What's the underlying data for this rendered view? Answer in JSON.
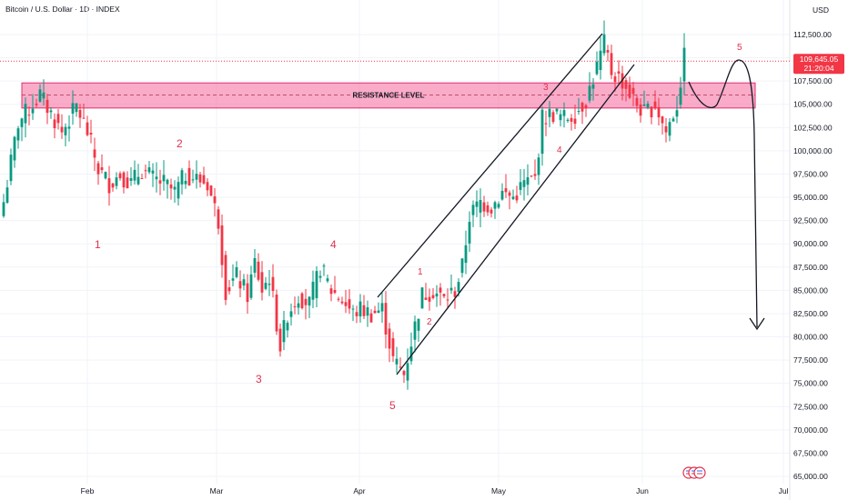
{
  "header": {
    "title": "Bitcoin / U.S. Dollar · 1D · INDEX",
    "currency": "USD"
  },
  "price_axis": {
    "ticks": [
      112500,
      110000,
      107500,
      105000,
      102500,
      100000,
      97500,
      95000,
      92500,
      90000,
      87500,
      85000,
      82500,
      80000,
      77500,
      75000,
      72500,
      70000,
      67500,
      65000
    ],
    "labels": [
      "112,500.00",
      "110,000.00",
      "107,500.00",
      "105,000.00",
      "102,500.00",
      "100,000.00",
      "97,500.00",
      "95,000.00",
      "92,500.00",
      "90,000.00",
      "87,500.00",
      "85,000.00",
      "82,500.00",
      "80,000.00",
      "77,500.00",
      "75,000.00",
      "72,500.00",
      "70,000.00",
      "67,500.00",
      "65,000.00"
    ]
  },
  "time_axis": {
    "labels": [
      "Feb",
      "Mar",
      "Apr",
      "May",
      "Jun",
      "Jul"
    ]
  },
  "last_price": {
    "value": 109645.05,
    "label": "109,645.05",
    "countdown": "21:20:04",
    "color": "#f23645"
  },
  "colors": {
    "up": "#089981",
    "down": "#f23645",
    "zone": "#f5669a",
    "wave": "#e0304e"
  },
  "resistance": {
    "label": "RESISTANCE LEVEL",
    "low": 104600,
    "high": 107300,
    "mid": 106000
  },
  "chart_data": {
    "type": "candlestick",
    "title": "Bitcoin / U.S. Dollar · 1D · INDEX",
    "ylim": [
      64500,
      114800
    ],
    "x_axis": [
      "Feb",
      "Mar",
      "Apr",
      "May",
      "Jun",
      "Jul"
    ],
    "anchor_closes": [
      [
        0,
        94500
      ],
      [
        4,
        103000
      ],
      [
        7,
        104500
      ],
      [
        10,
        106000
      ],
      [
        13,
        104000
      ],
      [
        16,
        102000
      ],
      [
        20,
        104800
      ],
      [
        23,
        102000
      ],
      [
        26,
        98000
      ],
      [
        29,
        96500
      ],
      [
        32,
        97500
      ],
      [
        35,
        96500
      ],
      [
        38,
        98000
      ],
      [
        41,
        97000
      ],
      [
        44,
        96500
      ],
      [
        47,
        95500
      ],
      [
        50,
        97500
      ],
      [
        53,
        97000
      ],
      [
        56,
        96500
      ],
      [
        59,
        92500
      ],
      [
        61,
        85000
      ],
      [
        64,
        86500
      ],
      [
        67,
        84500
      ],
      [
        69,
        88000
      ],
      [
        71,
        85000
      ],
      [
        73,
        86500
      ],
      [
        76,
        79000
      ],
      [
        78,
        82500
      ],
      [
        81,
        84500
      ],
      [
        84,
        83500
      ],
      [
        87,
        87500
      ],
      [
        90,
        85000
      ],
      [
        93,
        84000
      ],
      [
        96,
        82500
      ],
      [
        98,
        83000
      ],
      [
        101,
        82500
      ],
      [
        104,
        83000
      ],
      [
        107,
        77500
      ],
      [
        110,
        76000
      ],
      [
        112,
        79500
      ],
      [
        115,
        84500
      ],
      [
        118,
        85000
      ],
      [
        121,
        84000
      ],
      [
        124,
        85000
      ],
      [
        126,
        87500
      ],
      [
        128,
        93000
      ],
      [
        131,
        94500
      ],
      [
        134,
        94000
      ],
      [
        137,
        95500
      ],
      [
        140,
        95000
      ],
      [
        143,
        96500
      ],
      [
        146,
        97000
      ],
      [
        148,
        103500
      ],
      [
        151,
        104000
      ],
      [
        154,
        103500
      ],
      [
        157,
        104000
      ],
      [
        160,
        105500
      ],
      [
        163,
        109000
      ],
      [
        165,
        111500
      ],
      [
        167,
        108500
      ],
      [
        170,
        107500
      ],
      [
        173,
        105500
      ],
      [
        176,
        104000
      ],
      [
        179,
        105000
      ],
      [
        182,
        102000
      ],
      [
        185,
        105000
      ],
      [
        187,
        110000
      ]
    ],
    "annotations": {
      "wave_labels_large": [
        "1",
        "2",
        "3",
        "4",
        "5"
      ],
      "wave_labels_small": [
        "1",
        "2",
        "3",
        "4",
        "5"
      ]
    }
  }
}
